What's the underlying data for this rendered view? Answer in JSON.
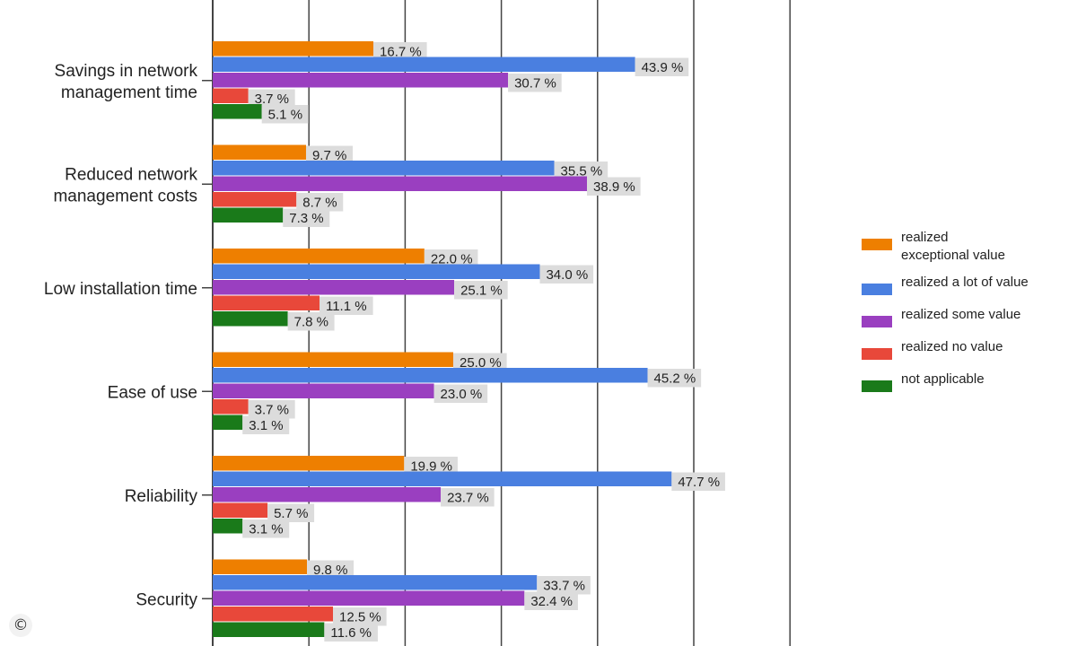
{
  "copyright_symbol": "©",
  "chart_data": {
    "type": "bar",
    "orientation": "horizontal",
    "categories": [
      [
        "Savings in network",
        "management time"
      ],
      [
        "Reduced network",
        "management costs"
      ],
      [
        "Low installation time"
      ],
      [
        "Ease of use"
      ],
      [
        "Reliability"
      ],
      [
        "Security"
      ]
    ],
    "series": [
      {
        "name": [
          "realized",
          "exceptional value"
        ],
        "color": "#ee7f00",
        "values": [
          16.7,
          9.7,
          22.0,
          25.0,
          19.9,
          9.8
        ],
        "labels": [
          "16.7 %",
          "9.7 %",
          "22.0 %",
          "25.0 %",
          "19.9 %",
          "9.8 %"
        ]
      },
      {
        "name": [
          "realized a lot of value"
        ],
        "color": "#4a7fe0",
        "values": [
          43.9,
          35.5,
          34.0,
          45.2,
          47.7,
          33.7
        ],
        "labels": [
          "43.9 %",
          "35.5 %",
          "34.0 %",
          "45.2 %",
          "47.7 %",
          "33.7 %"
        ]
      },
      {
        "name": [
          "realized some value"
        ],
        "color": "#9a3fc0",
        "values": [
          30.7,
          38.9,
          25.1,
          23.0,
          23.7,
          32.4
        ],
        "labels": [
          "30.7 %",
          "38.9 %",
          "25.1 %",
          "23.0 %",
          "23.7 %",
          "32.4 %"
        ]
      },
      {
        "name": [
          "realized no value"
        ],
        "color": "#e8483a",
        "values": [
          3.7,
          8.7,
          11.1,
          3.7,
          5.7,
          12.5
        ],
        "labels": [
          "3.7 %",
          "8.7 %",
          "11.1 %",
          "3.7 %",
          "5.7 %",
          "12.5 %"
        ]
      },
      {
        "name": [
          "not applicable"
        ],
        "color": "#1a7a1a",
        "values": [
          5.1,
          7.3,
          7.8,
          3.1,
          3.1,
          11.6
        ],
        "labels": [
          "5.1 %",
          "7.3 %",
          "7.8 %",
          "3.1 %",
          "3.1 %",
          "11.6 %"
        ]
      }
    ],
    "xlim": [
      0,
      60
    ],
    "grid": true,
    "legend": "right",
    "label_background": "#dcdcdc",
    "grid_color": "#444444"
  }
}
